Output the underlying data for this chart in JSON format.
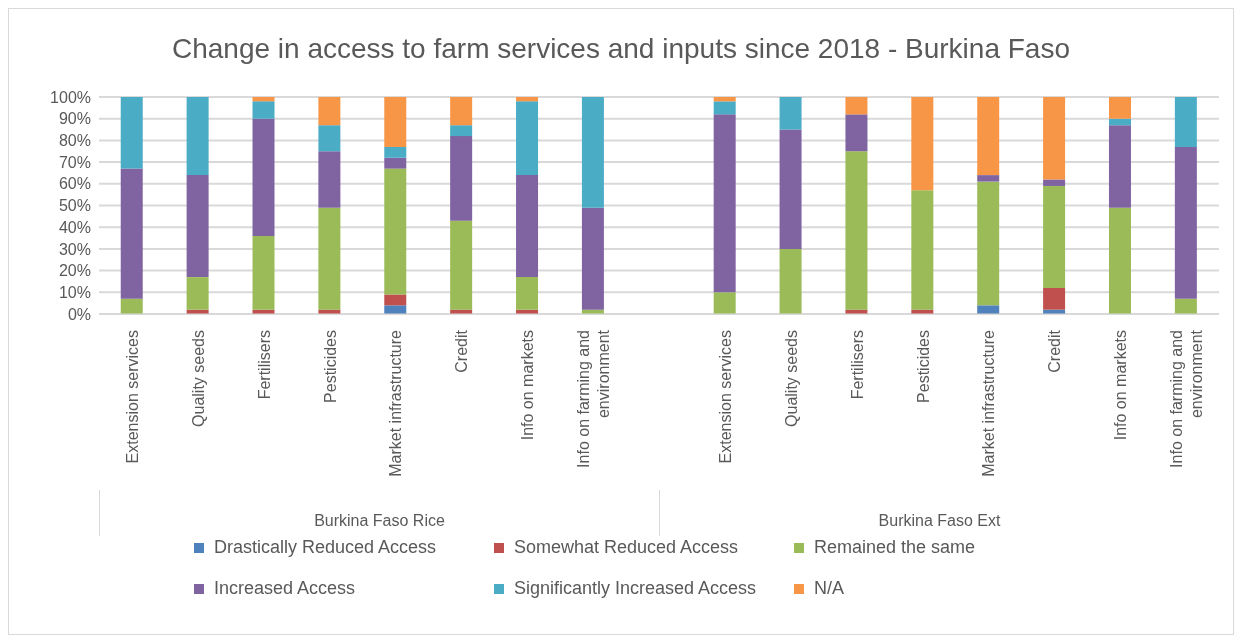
{
  "chart_data": {
    "type": "bar",
    "stacked": true,
    "title": "Change in access to farm services and inputs since 2018 - Burkina Faso",
    "categories": [
      "Extension services",
      "Quality seeds",
      "Fertilisers",
      "Pesticides",
      "Market infrastructure",
      "Credit",
      "Info on markets",
      "Info on farming and environment",
      null,
      "Extension services",
      "Quality seeds",
      "Fertilisers",
      "Pesticides",
      "Market infrastructure",
      "Credit",
      "Info on markets",
      "Info on farming and environment"
    ],
    "series": [
      {
        "name": "Drastically Reduced Access",
        "color": "#4f81bd",
        "values": [
          0,
          0,
          0,
          0,
          4,
          0,
          0,
          0,
          null,
          0,
          0,
          0,
          0,
          4,
          2,
          0,
          0
        ]
      },
      {
        "name": "Somewhat Reduced Access",
        "color": "#c0504d",
        "values": [
          0,
          2,
          2,
          2,
          5,
          2,
          2,
          0,
          null,
          0,
          0,
          2,
          2,
          0,
          10,
          0,
          0
        ]
      },
      {
        "name": "Remained the same",
        "color": "#9bbb59",
        "values": [
          7,
          15,
          34,
          47,
          58,
          41,
          15,
          2,
          null,
          10,
          30,
          73,
          55,
          57,
          47,
          49,
          7
        ]
      },
      {
        "name": "Increased Access",
        "color": "#8064a2",
        "values": [
          60,
          47,
          54,
          26,
          5,
          39,
          47,
          47,
          null,
          82,
          55,
          17,
          0,
          3,
          3,
          38,
          70
        ]
      },
      {
        "name": "Significantly Increased Access",
        "color": "#4bacc6",
        "values": [
          33,
          36,
          8,
          12,
          5,
          5,
          34,
          51,
          null,
          6,
          15,
          0,
          0,
          0,
          0,
          3,
          23
        ]
      },
      {
        "name": "N/A",
        "color": "#f79646",
        "values": [
          0,
          0,
          2,
          13,
          23,
          13,
          2,
          0,
          null,
          2,
          0,
          8,
          43,
          36,
          38,
          10,
          0
        ]
      }
    ],
    "ylim": [
      0,
      100
    ],
    "yticks": [
      {
        "value": 0,
        "label": "0%"
      },
      {
        "value": 10,
        "label": "10%"
      },
      {
        "value": 20,
        "label": "20%"
      },
      {
        "value": 30,
        "label": "30%"
      },
      {
        "value": 40,
        "label": "40%"
      },
      {
        "value": 50,
        "label": "50%"
      },
      {
        "value": 60,
        "label": "60%"
      },
      {
        "value": 70,
        "label": "70%"
      },
      {
        "value": 80,
        "label": "80%"
      },
      {
        "value": 90,
        "label": "90%"
      },
      {
        "value": 100,
        "label": "100%"
      }
    ],
    "grid": "y",
    "legend": "bottom",
    "annotations": [
      "Burkina Faso Rice",
      "Burkina Faso Ext"
    ]
  }
}
